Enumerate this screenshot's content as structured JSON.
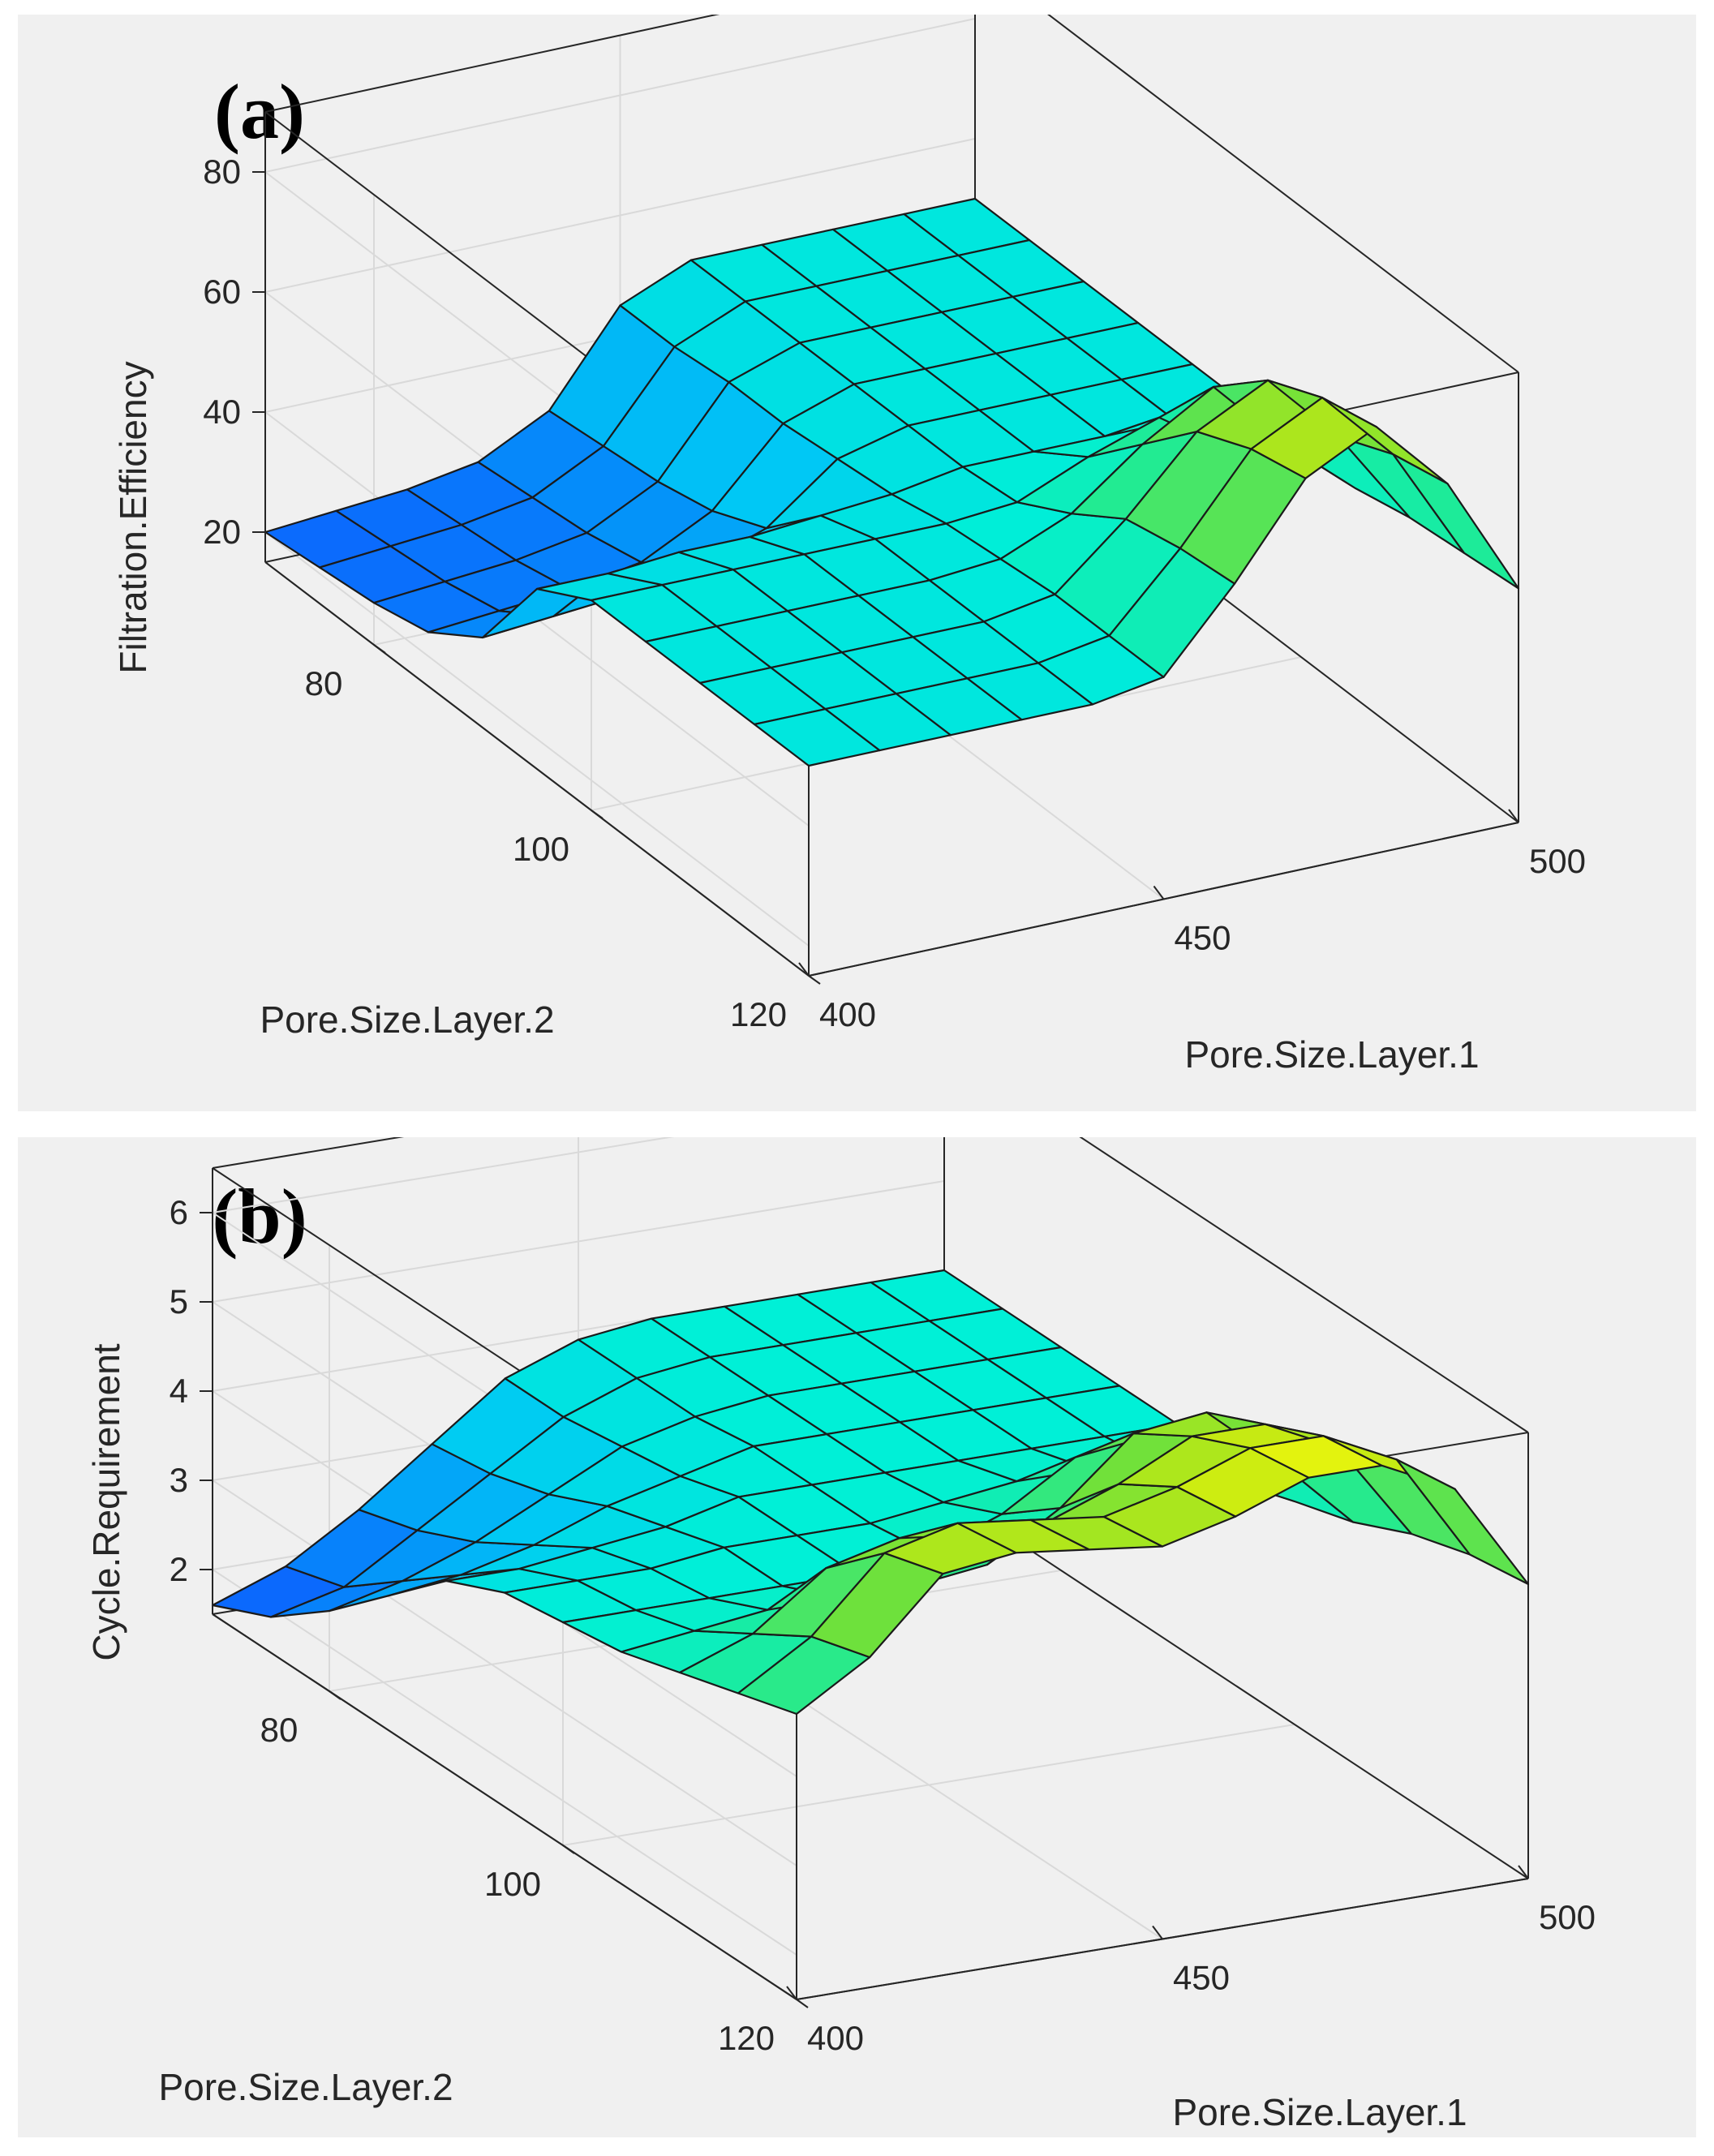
{
  "figure": {
    "panels": [
      "(a)",
      "(b)"
    ]
  },
  "chart_data": [
    {
      "type": "surface",
      "panel_label": "(a)",
      "title": "",
      "xlabel": "Pore.Size.Layer.1",
      "ylabel": "Pore.Size.Layer.2",
      "zlabel": "Filtration.Efficiency",
      "xlim": [
        400,
        500
      ],
      "ylim": [
        70,
        120
      ],
      "zlim": [
        15,
        90
      ],
      "xticks": [
        "400",
        "450",
        "500"
      ],
      "yticks": [
        "80",
        "100",
        "120"
      ],
      "zticks": [
        "20",
        "40",
        "60",
        "80"
      ],
      "x": [
        400,
        410,
        420,
        430,
        440,
        450,
        460,
        470,
        480,
        490,
        500
      ],
      "y": [
        70,
        75,
        80,
        85,
        90,
        95,
        100,
        105,
        110,
        115,
        120
      ],
      "z": [
        [
          20,
          21,
          22,
          24,
          30,
          45,
          50,
          50,
          50,
          50,
          50
        ],
        [
          21,
          22,
          23,
          25,
          31,
          45,
          50,
          50,
          50,
          50,
          50
        ],
        [
          22,
          23,
          24,
          26,
          32,
          46,
          50,
          50,
          50,
          50,
          50
        ],
        [
          24,
          25,
          26,
          28,
          34,
          46,
          50,
          50,
          50,
          50,
          50
        ],
        [
          30,
          31,
          32,
          34,
          38,
          47,
          50,
          50,
          50,
          50,
          50
        ],
        [
          45,
          45,
          46,
          46,
          47,
          48,
          50,
          50,
          50,
          50,
          50
        ],
        [
          50,
          50,
          50,
          50,
          50,
          50,
          51,
          56,
          60,
          52,
          50
        ],
        [
          50,
          50,
          50,
          50,
          50,
          51,
          56,
          65,
          72,
          60,
          50
        ],
        [
          50,
          50,
          50,
          50,
          50,
          52,
          62,
          74,
          80,
          68,
          52
        ],
        [
          50,
          50,
          50,
          50,
          50,
          52,
          64,
          78,
          84,
          72,
          53
        ],
        [
          50,
          50,
          50,
          50,
          50,
          52,
          65,
          80,
          86,
          74,
          54
        ]
      ]
    },
    {
      "type": "surface",
      "panel_label": "(b)",
      "title": "",
      "xlabel": "Pore.Size.Layer.1",
      "ylabel": "Pore.Size.Layer.2",
      "zlabel": "Cycle.Requirement",
      "xlim": [
        400,
        500
      ],
      "ylim": [
        70,
        120
      ],
      "zlim": [
        1.5,
        6.5
      ],
      "xticks": [
        "400",
        "450",
        "500"
      ],
      "yticks": [
        "80",
        "100",
        "120"
      ],
      "zticks": [
        "2",
        "3",
        "4",
        "5",
        "6"
      ],
      "x": [
        400,
        410,
        420,
        430,
        440,
        450,
        460,
        470,
        480,
        490,
        500
      ],
      "y": [
        70,
        75,
        80,
        85,
        90,
        95,
        100,
        105,
        110,
        115,
        120
      ],
      "z": [
        [
          1.6,
          1.9,
          2.4,
          3.0,
          3.6,
          3.9,
          4.0,
          4.0,
          4.0,
          4.0,
          4.0
        ],
        [
          1.9,
          2.1,
          2.6,
          3.1,
          3.6,
          3.9,
          4.0,
          4.0,
          4.0,
          4.0,
          4.0
        ],
        [
          2.4,
          2.6,
          2.9,
          3.3,
          3.7,
          3.9,
          4.0,
          4.0,
          4.0,
          4.0,
          4.0
        ],
        [
          3.0,
          3.1,
          3.3,
          3.6,
          3.8,
          4.0,
          4.0,
          4.0,
          4.0,
          4.0,
          4.0
        ],
        [
          3.6,
          3.6,
          3.7,
          3.8,
          4.0,
          4.0,
          4.0,
          4.0,
          4.0,
          4.0,
          4.0
        ],
        [
          3.9,
          3.9,
          3.9,
          4.0,
          4.0,
          4.0,
          4.1,
          4.2,
          4.2,
          4.1,
          4.0
        ],
        [
          4.0,
          4.0,
          4.0,
          4.0,
          4.0,
          4.1,
          4.4,
          4.9,
          5.0,
          4.4,
          4.0
        ],
        [
          4.1,
          4.2,
          4.3,
          4.3,
          4.3,
          4.4,
          4.9,
          5.6,
          5.7,
          5.0,
          4.2
        ],
        [
          4.3,
          4.6,
          5.2,
          5.4,
          5.3,
          5.3,
          5.6,
          6.0,
          6.0,
          5.6,
          4.5
        ],
        [
          4.5,
          5.0,
          5.8,
          6.0,
          5.9,
          5.8,
          6.0,
          6.3,
          6.3,
          5.9,
          4.7
        ],
        [
          4.7,
          5.2,
          6.0,
          6.1,
          6.0,
          5.9,
          6.1,
          6.4,
          6.4,
          6.0,
          4.8
        ]
      ]
    }
  ]
}
